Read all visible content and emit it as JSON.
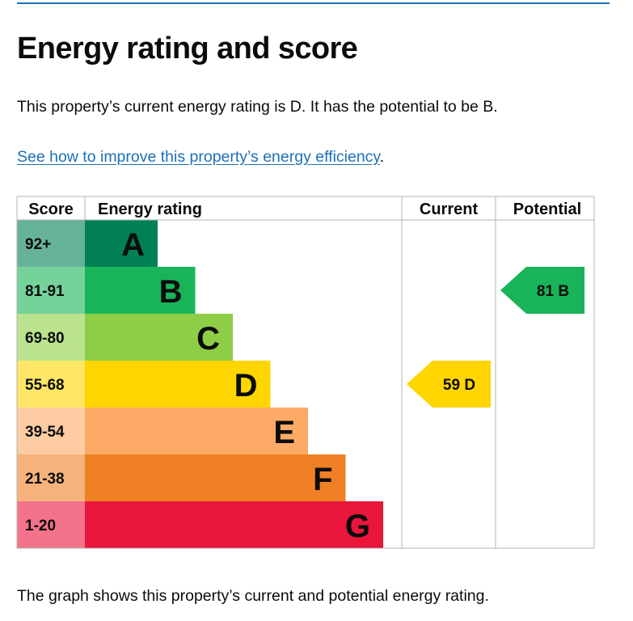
{
  "page": {
    "title": "Energy rating and score",
    "summary": "This property’s current energy rating is D. It has the potential to be B.",
    "improve_link": "See how to improve this property’s energy efficiency",
    "improve_suffix": ".",
    "caption": "The graph shows this property’s current and potential energy rating."
  },
  "chart_data": {
    "type": "table",
    "headers": {
      "score": "Score",
      "rating": "Energy rating",
      "current": "Current",
      "potential": "Potential"
    },
    "bands": [
      {
        "letter": "A",
        "range": "92+",
        "color": "#008054",
        "score_bg": "#66b398"
      },
      {
        "letter": "B",
        "range": "81-91",
        "color": "#19b459",
        "score_bg": "#75d29b"
      },
      {
        "letter": "C",
        "range": "69-80",
        "color": "#8dce46",
        "score_bg": "#bae28f"
      },
      {
        "letter": "D",
        "range": "55-68",
        "color": "#ffd500",
        "score_bg": "#ffe666"
      },
      {
        "letter": "E",
        "range": "39-54",
        "color": "#fcaa65",
        "score_bg": "#fdcca3"
      },
      {
        "letter": "F",
        "range": "21-38",
        "color": "#ef8023",
        "score_bg": "#f5b37b"
      },
      {
        "letter": "G",
        "range": "1-20",
        "color": "#e9153b",
        "score_bg": "#f2738a"
      }
    ],
    "current": {
      "score": 59,
      "letter": "D",
      "label": "59  D",
      "color": "#ffd500"
    },
    "potential": {
      "score": 81,
      "letter": "B",
      "label": "81  B",
      "color": "#19b459"
    }
  }
}
